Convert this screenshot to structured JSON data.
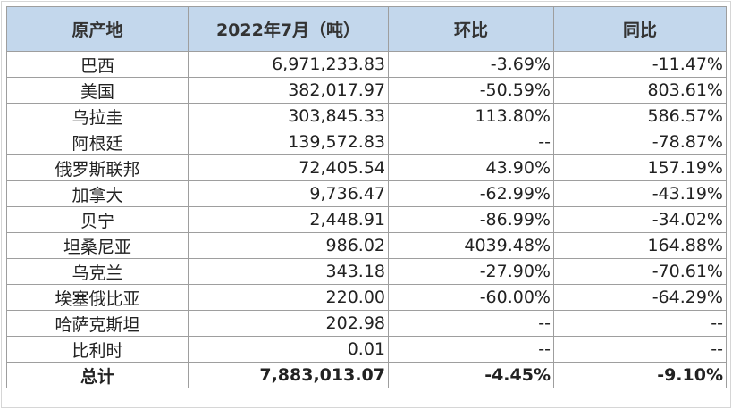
{
  "table": {
    "headers": [
      "原产地",
      "2022年7月（吨）",
      "环比",
      "同比"
    ],
    "rows": [
      [
        "巴西",
        "6,971,233.83",
        "-3.69%",
        "-11.47%"
      ],
      [
        "美国",
        "382,017.97",
        "-50.59%",
        "803.61%"
      ],
      [
        "乌拉圭",
        "303,845.33",
        "113.80%",
        "586.57%"
      ],
      [
        "阿根廷",
        "139,572.83",
        "--",
        "-78.87%"
      ],
      [
        "俄罗斯联邦",
        "72,405.54",
        "43.90%",
        "157.19%"
      ],
      [
        "加拿大",
        "9,736.47",
        "-62.99%",
        "-43.19%"
      ],
      [
        "贝宁",
        "2,448.91",
        "-86.99%",
        "-34.02%"
      ],
      [
        "坦桑尼亚",
        "986.02",
        "4039.48%",
        "164.88%"
      ],
      [
        "乌克兰",
        "343.18",
        "-27.90%",
        "-70.61%"
      ],
      [
        "埃塞俄比亚",
        "220.00",
        "-60.00%",
        "-64.29%"
      ],
      [
        "哈萨克斯坦",
        "202.98",
        "--",
        "--"
      ],
      [
        "比利时",
        "0.01",
        "--",
        "--"
      ]
    ],
    "total": [
      "总计",
      "7,883,013.07",
      "-4.45%",
      "-9.10%"
    ]
  },
  "colors": {
    "header_bg": "#c3d7ec",
    "border": "#9e9e9e"
  }
}
